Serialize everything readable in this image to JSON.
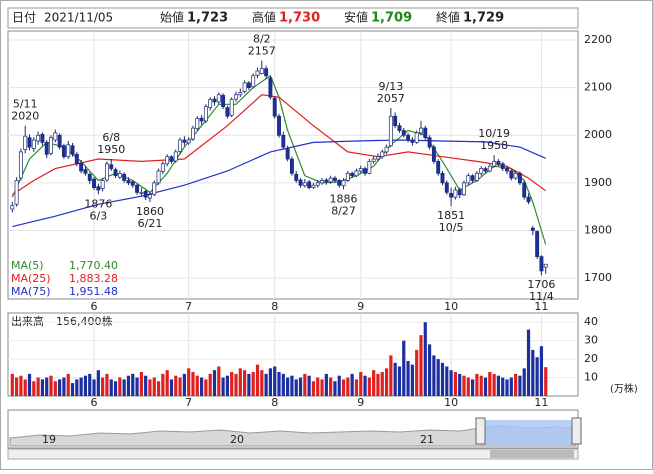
{
  "header": {
    "date_label": "日付",
    "date": "2021/11/05",
    "open_label": "始値",
    "open": "1,723",
    "high_label": "高値",
    "high": "1,730",
    "low_label": "安値",
    "low": "1,709",
    "close_label": "終値",
    "close": "1,729"
  },
  "chart_data": {
    "type": "candlestick",
    "up_color": "#ffffff",
    "down_color": "#1c2fa0",
    "edge_color": "#1c2a70",
    "xlim": [
      -1,
      131.5
    ],
    "ylim": [
      1656,
      2219
    ],
    "yticks": [
      1700,
      1800,
      1900,
      2000,
      2100,
      2200
    ],
    "xticks": [
      {
        "value": 19,
        "label": "6"
      },
      {
        "value": 41,
        "label": "7"
      },
      {
        "value": 61,
        "label": "8"
      },
      {
        "value": 81,
        "label": "9"
      },
      {
        "value": 102,
        "label": "10"
      },
      {
        "value": 123,
        "label": "11"
      }
    ],
    "grid": true,
    "candles": [
      [
        1845,
        1860,
        1838,
        1852
      ],
      [
        1855,
        1912,
        1850,
        1905
      ],
      [
        1910,
        1972,
        1905,
        1965
      ],
      [
        1970,
        2020,
        1962,
        1998
      ],
      [
        1995,
        2002,
        1968,
        1975
      ],
      [
        1972,
        1996,
        1965,
        1990
      ],
      [
        1988,
        2008,
        1980,
        2000
      ],
      [
        2002,
        2006,
        1978,
        1985
      ],
      [
        1985,
        1990,
        1952,
        1960
      ],
      [
        1962,
        2000,
        1958,
        1995
      ],
      [
        1990,
        2012,
        1985,
        2005
      ],
      [
        2000,
        2004,
        1970,
        1975
      ],
      [
        1978,
        1982,
        1950,
        1955
      ],
      [
        1955,
        1988,
        1950,
        1980
      ],
      [
        1978,
        1984,
        1955,
        1960
      ],
      [
        1960,
        1965,
        1935,
        1940
      ],
      [
        1942,
        1948,
        1920,
        1925
      ],
      [
        1928,
        1935,
        1915,
        1920
      ],
      [
        1918,
        1922,
        1898,
        1905
      ],
      [
        1908,
        1912,
        1885,
        1890
      ],
      [
        1892,
        1898,
        1876,
        1885
      ],
      [
        1888,
        1910,
        1882,
        1905
      ],
      [
        1906,
        1945,
        1902,
        1940
      ],
      [
        1938,
        1950,
        1925,
        1930
      ],
      [
        1928,
        1932,
        1910,
        1915
      ],
      [
        1912,
        1926,
        1908,
        1920
      ],
      [
        1918,
        1922,
        1900,
        1905
      ],
      [
        1905,
        1912,
        1895,
        1900
      ],
      [
        1902,
        1906,
        1890,
        1895
      ],
      [
        1895,
        1898,
        1875,
        1880
      ],
      [
        1878,
        1890,
        1872,
        1880
      ],
      [
        1882,
        1886,
        1864,
        1870
      ],
      [
        1868,
        1882,
        1860,
        1875
      ],
      [
        1876,
        1905,
        1872,
        1900
      ],
      [
        1900,
        1930,
        1896,
        1925
      ],
      [
        1924,
        1945,
        1918,
        1940
      ],
      [
        1940,
        1960,
        1935,
        1955
      ],
      [
        1955,
        1958,
        1940,
        1945
      ],
      [
        1946,
        1970,
        1942,
        1965
      ],
      [
        1966,
        1995,
        1960,
        1990
      ],
      [
        1990,
        1998,
        1978,
        1985
      ],
      [
        1984,
        1996,
        1980,
        1990
      ],
      [
        1992,
        2020,
        1988,
        2015
      ],
      [
        2014,
        2040,
        2010,
        2035
      ],
      [
        2036,
        2042,
        2022,
        2030
      ],
      [
        2030,
        2065,
        2025,
        2060
      ],
      [
        2058,
        2080,
        2052,
        2075
      ],
      [
        2076,
        2082,
        2062,
        2070
      ],
      [
        2070,
        2090,
        2065,
        2085
      ],
      [
        2084,
        2088,
        2055,
        2060
      ],
      [
        2058,
        2062,
        2035,
        2040
      ],
      [
        2042,
        2080,
        2038,
        2075
      ],
      [
        2076,
        2092,
        2070,
        2085
      ],
      [
        2085,
        2098,
        2080,
        2090
      ],
      [
        2092,
        2115,
        2088,
        2110
      ],
      [
        2110,
        2114,
        2095,
        2100
      ],
      [
        2102,
        2130,
        2098,
        2125
      ],
      [
        2126,
        2142,
        2120,
        2135
      ],
      [
        2130,
        2157,
        2128,
        2140
      ],
      [
        2140,
        2146,
        2118,
        2125
      ],
      [
        2120,
        2124,
        2075,
        2080
      ],
      [
        2078,
        2082,
        2035,
        2040
      ],
      [
        2040,
        2045,
        1995,
        2000
      ],
      [
        2000,
        2008,
        1970,
        1975
      ],
      [
        1972,
        1978,
        1945,
        1950
      ],
      [
        1950,
        1955,
        1915,
        1920
      ],
      [
        1918,
        1925,
        1900,
        1905
      ],
      [
        1906,
        1910,
        1890,
        1895
      ],
      [
        1894,
        1908,
        1890,
        1900
      ],
      [
        1902,
        1906,
        1886,
        1890
      ],
      [
        1890,
        1900,
        1887,
        1895
      ],
      [
        1895,
        1906,
        1890,
        1900
      ],
      [
        1900,
        1910,
        1896,
        1905
      ],
      [
        1906,
        1910,
        1896,
        1902
      ],
      [
        1902,
        1915,
        1898,
        1910
      ],
      [
        1910,
        1914,
        1900,
        1905
      ],
      [
        1905,
        1908,
        1890,
        1895
      ],
      [
        1894,
        1910,
        1886,
        1905
      ],
      [
        1905,
        1925,
        1902,
        1920
      ],
      [
        1920,
        1924,
        1910,
        1915
      ],
      [
        1915,
        1930,
        1912,
        1925
      ],
      [
        1925,
        1936,
        1920,
        1930
      ],
      [
        1930,
        1934,
        1915,
        1920
      ],
      [
        1920,
        1950,
        1918,
        1945
      ],
      [
        1945,
        1956,
        1940,
        1950
      ],
      [
        1950,
        1962,
        1946,
        1955
      ],
      [
        1955,
        1970,
        1950,
        1965
      ],
      [
        1965,
        1980,
        1960,
        1975
      ],
      [
        1978,
        2057,
        1975,
        2040
      ],
      [
        2040,
        2048,
        2015,
        2020
      ],
      [
        2020,
        2026,
        2005,
        2010
      ],
      [
        2010,
        2015,
        1995,
        2000
      ],
      [
        2000,
        2005,
        1985,
        1990
      ],
      [
        1990,
        1996,
        1978,
        1985
      ],
      [
        1985,
        2010,
        1982,
        2005
      ],
      [
        2005,
        2030,
        2000,
        2015
      ],
      [
        2015,
        2020,
        1990,
        1995
      ],
      [
        1995,
        2000,
        1970,
        1975
      ],
      [
        1975,
        1980,
        1940,
        1945
      ],
      [
        1945,
        1950,
        1915,
        1920
      ],
      [
        1920,
        1925,
        1895,
        1900
      ],
      [
        1900,
        1905,
        1875,
        1880
      ],
      [
        1878,
        1890,
        1851,
        1870
      ],
      [
        1870,
        1892,
        1865,
        1885
      ],
      [
        1885,
        1890,
        1868,
        1875
      ],
      [
        1875,
        1905,
        1872,
        1900
      ],
      [
        1900,
        1920,
        1895,
        1915
      ],
      [
        1915,
        1918,
        1900,
        1905
      ],
      [
        1905,
        1925,
        1902,
        1920
      ],
      [
        1920,
        1935,
        1915,
        1930
      ],
      [
        1930,
        1934,
        1920,
        1925
      ],
      [
        1925,
        1940,
        1922,
        1935
      ],
      [
        1935,
        1958,
        1932,
        1945
      ],
      [
        1945,
        1950,
        1935,
        1940
      ],
      [
        1940,
        1944,
        1925,
        1930
      ],
      [
        1930,
        1935,
        1918,
        1925
      ],
      [
        1925,
        1928,
        1905,
        1910
      ],
      [
        1910,
        1925,
        1906,
        1920
      ],
      [
        1920,
        1924,
        1895,
        1900
      ],
      [
        1900,
        1905,
        1865,
        1870
      ],
      [
        1870,
        1878,
        1855,
        1860
      ],
      [
        1805,
        1810,
        1790,
        1800
      ],
      [
        1798,
        1800,
        1740,
        1745
      ],
      [
        1745,
        1748,
        1706,
        1715
      ],
      [
        1723,
        1730,
        1709,
        1729
      ]
    ],
    "ma": [
      {
        "name": "MA(5)",
        "value_label": "1,770.40",
        "color": "#2e8b2e",
        "x": [
          0,
          4,
          8,
          12,
          16,
          20,
          24,
          28,
          32,
          36,
          40,
          44,
          48,
          52,
          56,
          60,
          62,
          64,
          68,
          72,
          76,
          80,
          84,
          88,
          92,
          96,
          100,
          104,
          108,
          112,
          116,
          119,
          121,
          123,
          124
        ],
        "values": [
          1870,
          1950,
          1985,
          1975,
          1945,
          1905,
          1920,
          1905,
          1880,
          1920,
          1975,
          2020,
          2065,
          2065,
          2100,
          2125,
          2080,
          2010,
          1915,
          1900,
          1902,
          1915,
          1935,
          1980,
          2010,
          2000,
          1945,
          1885,
          1905,
          1935,
          1930,
          1905,
          1860,
          1800,
          1770.4
        ]
      },
      {
        "name": "MA(25)",
        "value_label": "1,883.28",
        "color": "#e02020",
        "x": [
          0,
          5,
          10,
          20,
          30,
          40,
          50,
          58,
          62,
          70,
          78,
          85,
          92,
          100,
          108,
          115,
          120,
          124
        ],
        "values": [
          1875,
          1905,
          1930,
          1950,
          1945,
          1950,
          2020,
          2085,
          2080,
          2020,
          1965,
          1955,
          1965,
          1955,
          1945,
          1935,
          1910,
          1883.28
        ]
      },
      {
        "name": "MA(75)",
        "value_label": "1,951.48",
        "color": "#2030d0",
        "x": [
          0,
          10,
          20,
          30,
          40,
          50,
          60,
          70,
          80,
          90,
          100,
          110,
          118,
          124
        ],
        "values": [
          1808,
          1830,
          1855,
          1872,
          1895,
          1925,
          1965,
          1985,
          1988,
          1990,
          1988,
          1986,
          1975,
          1951.48
        ]
      }
    ],
    "annotations": [
      {
        "date": "5/11",
        "price": 2020,
        "x": 3,
        "kind": "high"
      },
      {
        "date": "6/3",
        "price": 1876,
        "x": 20,
        "kind": "low"
      },
      {
        "date": "6/8",
        "price": 1950,
        "x": 23,
        "kind": "high"
      },
      {
        "date": "6/21",
        "price": 1860,
        "x": 32,
        "kind": "low"
      },
      {
        "date": "8/2",
        "price": 2157,
        "x": 58,
        "kind": "high"
      },
      {
        "date": "8/27",
        "price": 1886,
        "x": 77,
        "kind": "low"
      },
      {
        "date": "9/13",
        "price": 2057,
        "x": 88,
        "kind": "high"
      },
      {
        "date": "10/5",
        "price": 1851,
        "x": 102,
        "kind": "low"
      },
      {
        "date": "10/19",
        "price": 1958,
        "x": 112,
        "kind": "high"
      },
      {
        "date": "11/4",
        "price": 1706,
        "x": 123,
        "kind": "low"
      }
    ],
    "volume": {
      "label": "出来高",
      "text": "156,400株",
      "unit": "(万株)",
      "ylim": [
        0,
        45
      ],
      "yticks": [
        10,
        20,
        30,
        40
      ],
      "up_color": "#e02020",
      "down_color": "#1c2fa0",
      "values": [
        12,
        10,
        11,
        9,
        12,
        8,
        10,
        9,
        10,
        11,
        8,
        9,
        10,
        12,
        7,
        9,
        10,
        11,
        12,
        9,
        14,
        10,
        12,
        9,
        8,
        10,
        9,
        11,
        12,
        10,
        13,
        11,
        9,
        10,
        8,
        12,
        14,
        9,
        11,
        10,
        12,
        15,
        13,
        11,
        10,
        9,
        12,
        14,
        16,
        10,
        11,
        13,
        12,
        15,
        14,
        12,
        13,
        17,
        14,
        12,
        15,
        16,
        13,
        12,
        10,
        11,
        9,
        10,
        12,
        11,
        8,
        10,
        9,
        12,
        10,
        8,
        11,
        9,
        10,
        12,
        9,
        13,
        11,
        10,
        14,
        12,
        13,
        15,
        22,
        18,
        16,
        30,
        19,
        17,
        25,
        33,
        40,
        28,
        22,
        20,
        18,
        16,
        14,
        13,
        12,
        11,
        10,
        9,
        12,
        11,
        10,
        13,
        12,
        11,
        10,
        9,
        10,
        12,
        11,
        15,
        36,
        25,
        21,
        27,
        15.64
      ]
    }
  },
  "navigator": {
    "labels": [
      "19",
      "20",
      "21"
    ]
  }
}
